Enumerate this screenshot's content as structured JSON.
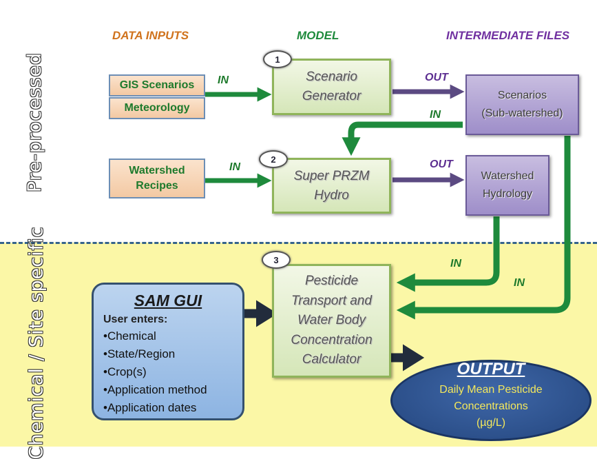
{
  "headers": {
    "data_inputs": "DATA INPUTS",
    "model": "MODEL",
    "intermediate": "INTERMEDIATE FILES"
  },
  "zones": {
    "top": "Pre-processed",
    "bottom": "Chemical / Site specific"
  },
  "colors": {
    "data_inputs_header": "#d0731d",
    "model_header": "#1e8a3c",
    "intermediate_header": "#7030a0",
    "green_arrow": "#1e8a3c",
    "purple_arrow": "#5b4a82",
    "bottom_zone": "#fbf7a6",
    "divider": "#35638c"
  },
  "inputs": {
    "gis": "GIS Scenarios",
    "meteorology": "Meteorology",
    "watershed_recipes": "Watershed\nRecipes"
  },
  "models": {
    "scenario_generator": "Scenario\nGenerator",
    "super_przm": "Super PRZM\nHydro",
    "calculator": "Pesticide\nTransport and\nWater Body\nConcentration\nCalculator"
  },
  "intermediate": {
    "scenarios": "Scenarios\n(Sub-watershed)",
    "watershed_hydrology": "Watershed\nHydrology"
  },
  "step_badges": [
    "1",
    "2",
    "3"
  ],
  "arrow_labels": {
    "in": "IN",
    "out": "OUT"
  },
  "gui": {
    "title": "SAM GUI",
    "subtitle": "User enters:",
    "items": [
      "•Chemical",
      "•State/Region",
      "•Crop(s)",
      "•Application method",
      "•Application dates"
    ]
  },
  "output": {
    "title": "OUTPUT",
    "text": "Daily Mean Pesticide\nConcentrations\n(µg/L)"
  }
}
